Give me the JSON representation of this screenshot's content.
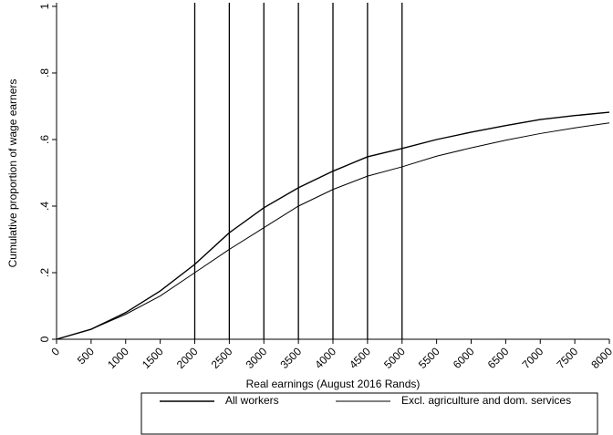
{
  "chart_data": {
    "type": "line",
    "xlabel": "Real earnings (August 2016 Rands)",
    "ylabel": "Cumulative proportion of wage earners",
    "x": [
      0,
      500,
      1000,
      1500,
      2000,
      2500,
      3000,
      3500,
      4000,
      4500,
      5000,
      5500,
      6000,
      6500,
      7000,
      7500,
      8000
    ],
    "series": [
      {
        "name": "All workers",
        "color": "#000000",
        "values": [
          0,
          0.03,
          0.08,
          0.145,
          0.225,
          0.32,
          0.395,
          0.455,
          0.505,
          0.548,
          0.573,
          0.6,
          0.622,
          0.642,
          0.66,
          0.672,
          0.682
        ]
      },
      {
        "name": "Excl. agriculture and dom. services",
        "color": "#000000",
        "values": [
          0,
          0.03,
          0.075,
          0.13,
          0.2,
          0.27,
          0.335,
          0.4,
          0.45,
          0.49,
          0.518,
          0.55,
          0.575,
          0.598,
          0.618,
          0.635,
          0.65
        ]
      }
    ],
    "vlines": [
      2000,
      2500,
      3000,
      3500,
      4000,
      4500,
      5000
    ],
    "xlim": [
      0,
      8000
    ],
    "xticks": [
      0,
      500,
      1000,
      1500,
      2000,
      2500,
      3000,
      3500,
      4000,
      4500,
      5000,
      5500,
      6000,
      6500,
      7000,
      7500,
      8000
    ],
    "ylim": [
      0,
      1
    ],
    "yticks": [
      0,
      {
        "value": 0.2,
        "label": ".2"
      },
      {
        "value": 0.4,
        "label": ".4"
      },
      {
        "value": 0.6,
        "label": ".6"
      },
      {
        "value": 0.8,
        "label": ".8"
      },
      1
    ],
    "legend": "bottom"
  }
}
